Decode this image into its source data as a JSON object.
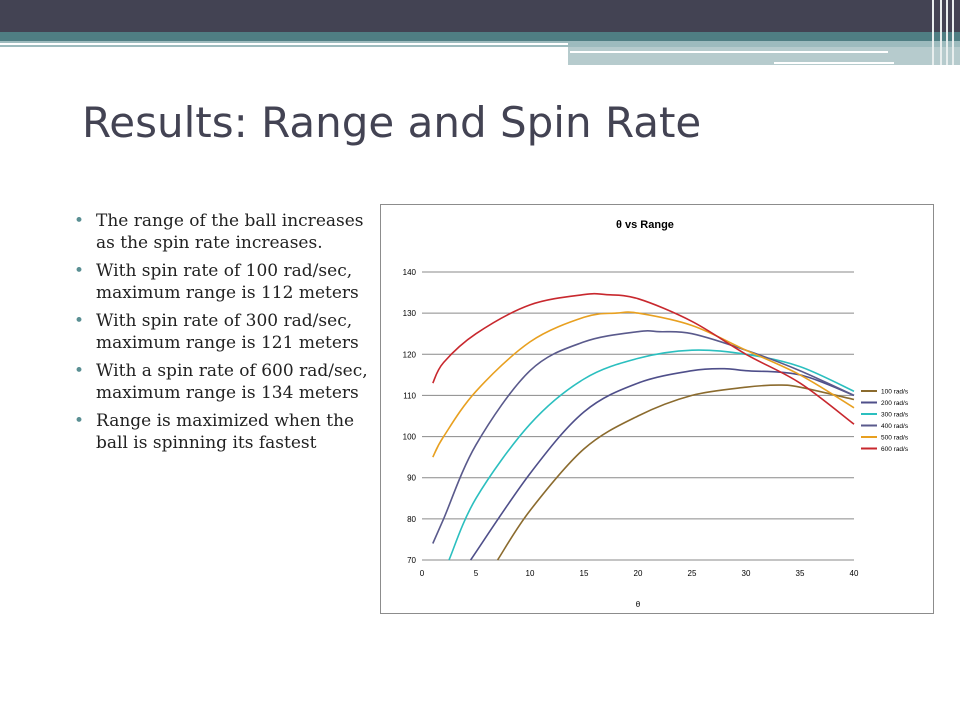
{
  "slide": {
    "title": "Results: Range and Spin Rate",
    "bullets": [
      "The range of the ball increases as the spin rate increases.",
      "With spin rate of 100 rad/sec, maximum range is 112 meters",
      "With spin rate of 300 rad/sec, maximum range is 121 meters",
      "With a spin rate of 600 rad/sec, maximum range is 134 meters",
      "Range is maximized when the ball is spinning its fastest"
    ],
    "bullet_glyph": "•"
  },
  "colors": {
    "banner_dark": "#434353",
    "banner_teal": "#4f7e83",
    "title": "#434353",
    "bullet": "#5a8f93"
  },
  "chart_data": {
    "type": "line",
    "title": "θ vs Range",
    "xlabel": "θ",
    "ylabel": "",
    "xlim": [
      0,
      40
    ],
    "ylim": [
      70,
      140
    ],
    "xticks": [
      0,
      5,
      10,
      15,
      20,
      25,
      30,
      35,
      40
    ],
    "yticks": [
      70,
      80,
      90,
      100,
      110,
      120,
      130,
      140
    ],
    "grid": "horizontal",
    "legend_position": "right",
    "series": [
      {
        "name": "100 rad/s",
        "color": "#8b6b2e",
        "x": [
          7,
          10,
          15,
          20,
          25,
          30,
          33,
          35,
          40
        ],
        "y": [
          70,
          82,
          97,
          105,
          110,
          112,
          112.5,
          112,
          109
        ]
      },
      {
        "name": "200 rad/s",
        "color": "#4f4f8a",
        "x": [
          4.5,
          10,
          15,
          20,
          25,
          28,
          30,
          35,
          40
        ],
        "y": [
          70,
          91,
          106,
          113,
          116,
          116.5,
          116,
          115,
          110
        ]
      },
      {
        "name": "300 rad/s",
        "color": "#2bbfbf",
        "x": [
          2.5,
          5,
          10,
          15,
          20,
          25,
          30,
          35,
          40
        ],
        "y": [
          70,
          85,
          103,
          114,
          119,
          121,
          120,
          117,
          111
        ]
      },
      {
        "name": "400 rad/s",
        "color": "#5a5a8c",
        "x": [
          1,
          2,
          5,
          10,
          15,
          20,
          22,
          25,
          30,
          35,
          40
        ],
        "y": [
          74,
          80,
          98,
          116,
          123,
          125.5,
          125.5,
          125,
          121,
          116,
          110
        ]
      },
      {
        "name": "500 rad/s",
        "color": "#e8a020",
        "x": [
          1,
          2,
          5,
          10,
          15,
          18,
          20,
          25,
          30,
          35,
          40
        ],
        "y": [
          95,
          100,
          111,
          123,
          129,
          130,
          130,
          127,
          121,
          115,
          107
        ]
      },
      {
        "name": "600 rad/s",
        "color": "#c8282e",
        "x": [
          1,
          2,
          5,
          10,
          15,
          17,
          20,
          25,
          30,
          35,
          40
        ],
        "y": [
          113,
          118,
          125,
          132,
          134.5,
          134.5,
          133.5,
          128,
          120,
          113,
          103
        ]
      }
    ]
  }
}
